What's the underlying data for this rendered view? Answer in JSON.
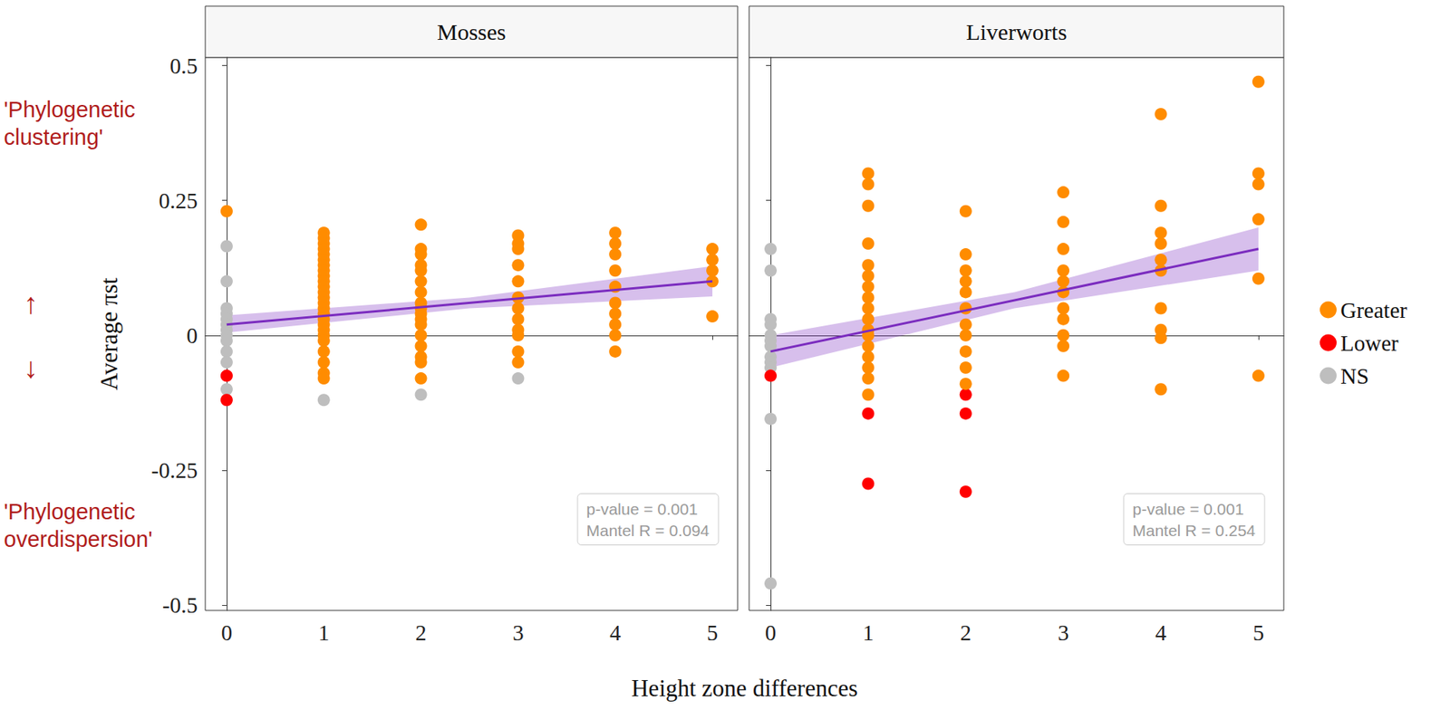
{
  "chart_data": {
    "type": "scatter",
    "x_label": "Height zone differences",
    "y_label": "Average πst",
    "legend": "right",
    "grid": false,
    "annotations": [
      "'Phylogenetic clustering'",
      "↑",
      "↓",
      "'Phylogenetic overdispersion'"
    ],
    "xlim": [
      -0.22,
      5.26
    ],
    "xticks": [
      0,
      1,
      2,
      3,
      4,
      5
    ],
    "ylim": [
      -0.51,
      0.515
    ],
    "yticks": [
      -0.5,
      -0.25,
      0,
      0.25,
      0.5
    ],
    "panels": [
      {
        "title": "Mosses",
        "stats": [
          "p-value = 0.001",
          "Mantel R = 0.094"
        ],
        "series": [
          {
            "name": "NS",
            "color": "#bebebe",
            "x": [
              0,
              0,
              0,
              0,
              0,
              0,
              0,
              0,
              0,
              0,
              0,
              0,
              1,
              2,
              3
            ],
            "values": [
              0.165,
              0.1,
              0.05,
              0.04,
              0.03,
              0.02,
              0.01,
              0.0,
              -0.01,
              -0.03,
              -0.05,
              -0.1,
              -0.12,
              -0.11,
              -0.08
            ]
          },
          {
            "name": "Lower",
            "color": "#ff0000",
            "x": [
              0,
              0
            ],
            "values": [
              -0.075,
              -0.12
            ]
          },
          {
            "name": "Greater",
            "color": "#ff8c00",
            "x": [
              0,
              1,
              1,
              1,
              1,
              1,
              1,
              1,
              1,
              1,
              1,
              1,
              1,
              1,
              1,
              1,
              1,
              1,
              1,
              1,
              1,
              1,
              1,
              1,
              1,
              1,
              2,
              2,
              2,
              2,
              2,
              2,
              2,
              2,
              2,
              2,
              2,
              2,
              2,
              2,
              2,
              2,
              2,
              3,
              3,
              3,
              3,
              3,
              3,
              3,
              3,
              3,
              3,
              3,
              3,
              4,
              4,
              4,
              4,
              4,
              4,
              4,
              4,
              4,
              4,
              5,
              5,
              5,
              5,
              5
            ],
            "values": [
              0.23,
              0.19,
              0.18,
              0.17,
              0.16,
              0.15,
              0.14,
              0.13,
              0.12,
              0.11,
              0.1,
              0.09,
              0.08,
              0.07,
              0.06,
              0.05,
              0.04,
              0.03,
              0.02,
              0.01,
              0.0,
              -0.01,
              -0.03,
              -0.05,
              -0.07,
              -0.08,
              0.205,
              0.16,
              0.15,
              0.13,
              0.12,
              0.1,
              0.08,
              0.06,
              0.05,
              0.04,
              0.03,
              0.02,
              0.0,
              -0.02,
              -0.04,
              -0.05,
              -0.08,
              0.185,
              0.17,
              0.16,
              0.13,
              0.1,
              0.07,
              0.05,
              0.03,
              0.01,
              0.0,
              -0.03,
              -0.05,
              0.19,
              0.17,
              0.15,
              0.12,
              0.09,
              0.06,
              0.04,
              0.02,
              0.0,
              -0.03,
              0.16,
              0.14,
              0.12,
              0.1,
              0.035
            ]
          }
        ],
        "fit": {
          "color": "#7b2cbf",
          "x": [
            0,
            5
          ],
          "values": [
            0.02,
            0.1
          ]
        },
        "band": {
          "x": [
            0,
            2.5,
            5
          ],
          "lower": [
            0.005,
            0.05,
            0.072
          ],
          "upper": [
            0.037,
            0.07,
            0.128
          ]
        }
      },
      {
        "title": "Liverworts",
        "tick_labels": "x",
        "stats": [
          "p-value = 0.001",
          "Mantel R = 0.254"
        ],
        "series": [
          {
            "name": "NS",
            "color": "#bebebe",
            "x": [
              0,
              0,
              0,
              0,
              0,
              0,
              0,
              0,
              0,
              0,
              0,
              0
            ],
            "values": [
              0.16,
              0.12,
              0.03,
              0.02,
              0.0,
              -0.01,
              -0.02,
              -0.04,
              -0.05,
              -0.06,
              -0.155,
              -0.46
            ]
          },
          {
            "name": "Lower",
            "color": "#ff0000",
            "x": [
              0,
              1,
              1,
              2,
              2,
              2
            ],
            "values": [
              -0.075,
              -0.145,
              -0.275,
              -0.11,
              -0.145,
              -0.29
            ]
          },
          {
            "name": "Greater",
            "color": "#ff8c00",
            "x": [
              1,
              1,
              1,
              1,
              1,
              1,
              1,
              1,
              1,
              1,
              1,
              1,
              1,
              1,
              1,
              1,
              1,
              2,
              2,
              2,
              2,
              2,
              2,
              2,
              2,
              2,
              2,
              2,
              3,
              3,
              3,
              3,
              3,
              3,
              3,
              3,
              3,
              3,
              3,
              4,
              4,
              4,
              4,
              4,
              4,
              4,
              4,
              4,
              4,
              5,
              5,
              5,
              5,
              5,
              5
            ],
            "values": [
              0.3,
              0.28,
              0.24,
              0.17,
              0.13,
              0.11,
              0.09,
              0.07,
              0.05,
              0.03,
              0.01,
              0.0,
              -0.02,
              -0.04,
              -0.06,
              -0.08,
              -0.11,
              0.23,
              0.15,
              0.12,
              0.1,
              0.08,
              0.05,
              0.02,
              0.0,
              -0.03,
              -0.06,
              -0.09,
              0.265,
              0.21,
              0.16,
              0.12,
              0.1,
              0.08,
              0.05,
              0.03,
              0.0,
              -0.02,
              -0.075,
              0.41,
              0.24,
              0.19,
              0.17,
              0.14,
              0.12,
              0.05,
              0.01,
              -0.005,
              -0.1,
              0.47,
              0.3,
              0.28,
              0.215,
              0.105,
              -0.075
            ]
          }
        ],
        "fit": {
          "color": "#7b2cbf",
          "x": [
            0,
            5
          ],
          "values": [
            -0.03,
            0.16
          ]
        },
        "band": {
          "x": [
            0,
            2.5,
            5
          ],
          "lower": [
            -0.06,
            0.05,
            0.12
          ],
          "upper": [
            0.0,
            0.08,
            0.2
          ]
        }
      }
    ]
  }
}
